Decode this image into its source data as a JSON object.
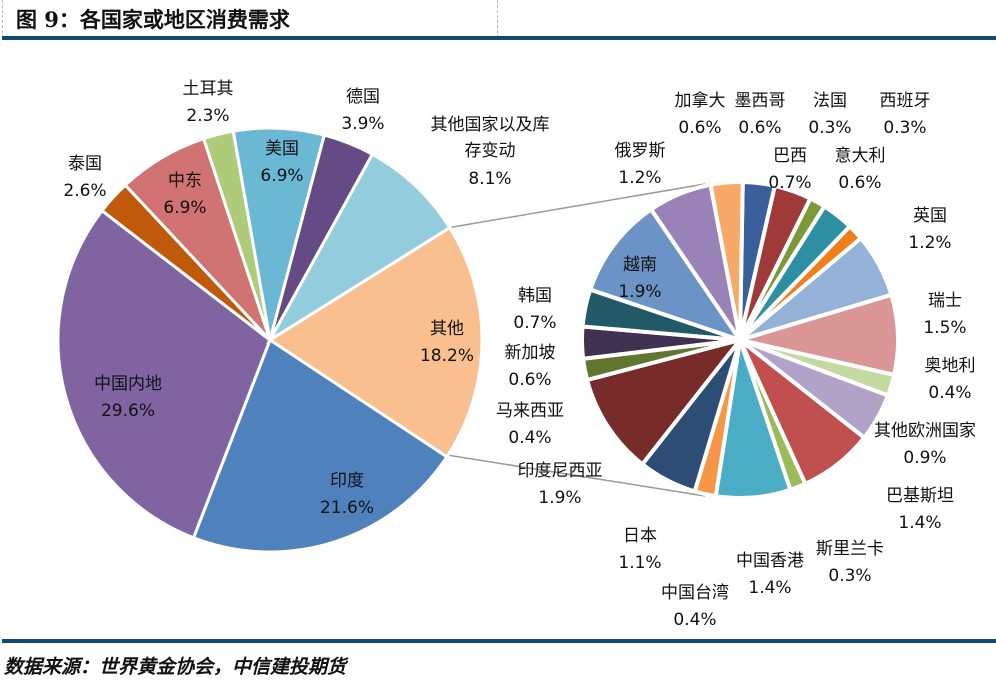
{
  "title": "图 9：各国家或地区消费需求",
  "source": "数据来源：世界黄金协会，中信建投期货",
  "chart_data": [
    {
      "type": "pie",
      "title": "",
      "slices": [
        {
          "label": "其他",
          "value": 18.2,
          "color": "#F9BF8F"
        },
        {
          "label": "印度",
          "value": 21.6,
          "color": "#4F81BD"
        },
        {
          "label": "中国内地",
          "value": 29.6,
          "color": "#8064A2"
        },
        {
          "label": "泰国",
          "value": 2.6,
          "color": "#C0590A"
        },
        {
          "label": "中东",
          "value": 6.9,
          "color": "#D07372"
        },
        {
          "label": "土耳其",
          "value": 2.3,
          "color": "#AECB7A"
        },
        {
          "label": "美国",
          "value": 6.9,
          "color": "#6BB8D4"
        },
        {
          "label": "德国",
          "value": 3.9,
          "color": "#654B86"
        },
        {
          "label": "其他国家以及库存变动",
          "value": 8.1,
          "color": "#93CDDD"
        }
      ]
    },
    {
      "type": "pie",
      "title": "",
      "note": "breakdown of 其他",
      "slices": [
        {
          "label": "墨西哥",
          "value": 0.6,
          "color": "#3A5F9A"
        },
        {
          "label": "巴西",
          "value": 0.7,
          "color": "#A03A3A"
        },
        {
          "label": "法国",
          "value": 0.3,
          "color": "#7A9A3A"
        },
        {
          "label": "意大利",
          "value": 0.6,
          "color": "#2E8FA3"
        },
        {
          "label": "西班牙",
          "value": 0.3,
          "color": "#F07F1A"
        },
        {
          "label": "英国",
          "value": 1.2,
          "color": "#94B2D8"
        },
        {
          "label": "瑞士",
          "value": 1.5,
          "color": "#D99694"
        },
        {
          "label": "奥地利",
          "value": 0.4,
          "color": "#C3D9A0"
        },
        {
          "label": "其他欧洲国家",
          "value": 0.9,
          "color": "#B2A2C7"
        },
        {
          "label": "巴基斯坦",
          "value": 1.4,
          "color": "#C0504D"
        },
        {
          "label": "斯里兰卡",
          "value": 0.3,
          "color": "#9BBB59"
        },
        {
          "label": "中国香港",
          "value": 1.4,
          "color": "#4BACC6"
        },
        {
          "label": "中国台湾",
          "value": 0.4,
          "color": "#F79646"
        },
        {
          "label": "日本",
          "value": 1.1,
          "color": "#2C4D75"
        },
        {
          "label": "印度尼西亚",
          "value": 1.9,
          "color": "#772C2A"
        },
        {
          "label": "马来西亚",
          "value": 0.4,
          "color": "#5F7530"
        },
        {
          "label": "新加坡",
          "value": 0.6,
          "color": "#403152"
        },
        {
          "label": "韩国",
          "value": 0.7,
          "color": "#215968"
        },
        {
          "label": "越南",
          "value": 1.9,
          "color": "#6C93C6"
        },
        {
          "label": "俄罗斯",
          "value": 1.2,
          "color": "#9982B8"
        },
        {
          "label": "加拿大",
          "value": 0.6,
          "color": "#F8A868"
        }
      ]
    }
  ]
}
